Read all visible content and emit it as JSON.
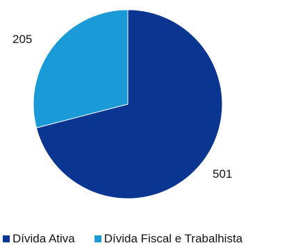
{
  "chart_data": {
    "type": "pie",
    "title": "",
    "series": [
      {
        "name": "Dívida Ativa",
        "value": 501,
        "color": "#0a3590"
      },
      {
        "name": "Dívida Fiscal e Trabalhista",
        "value": 205,
        "color": "#1a9ad6"
      }
    ],
    "data_labels": [
      "501",
      "205"
    ],
    "start_angle": "12 o'clock",
    "direction": "clockwise",
    "legend_position": "bottom"
  }
}
